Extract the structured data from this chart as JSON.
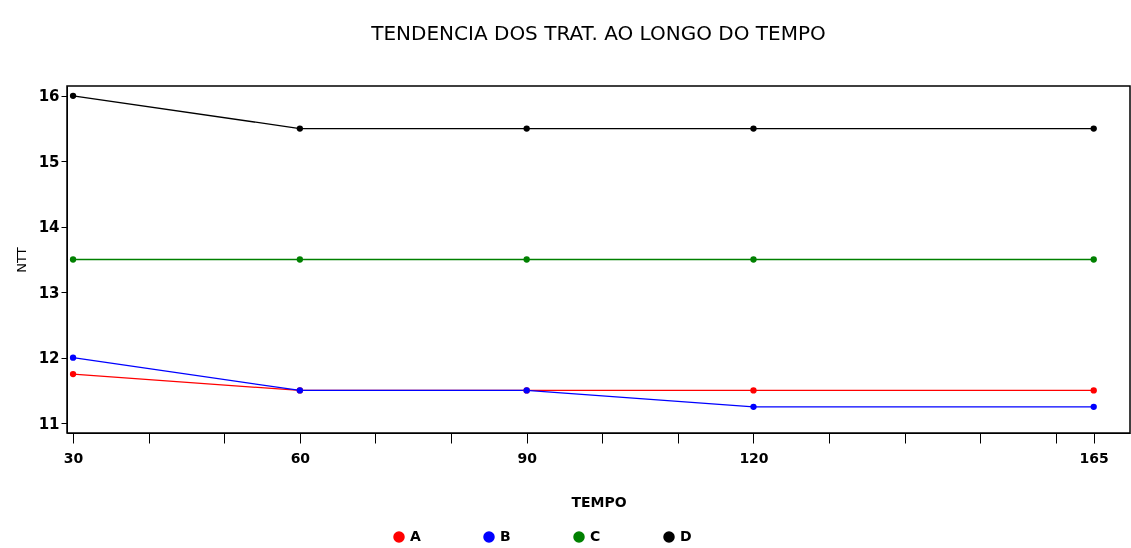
{
  "chart_data": {
    "type": "line",
    "title": "TENDENCIA DOS TRAT. AO LONGO DO TEMPO",
    "xlabel": "TEMPO",
    "ylabel": "NTT",
    "x": [
      30,
      60,
      90,
      120,
      165
    ],
    "series": [
      {
        "name": "A",
        "color": "#ff0000",
        "values": [
          11.75,
          11.5,
          11.5,
          11.5,
          11.5
        ]
      },
      {
        "name": "B",
        "color": "#0000ff",
        "values": [
          12,
          11.5,
          11.5,
          11.25,
          11.25
        ]
      },
      {
        "name": "C",
        "color": "#008000",
        "values": [
          13.5,
          13.5,
          13.5,
          13.5,
          13.5
        ]
      },
      {
        "name": "D",
        "color": "#000000",
        "values": [
          16,
          15.5,
          15.5,
          15.5,
          15.5
        ]
      }
    ],
    "xlim": [
      29.2,
      169.8
    ],
    "ylim": [
      10.85,
      16.15
    ],
    "xticks": [
      30,
      {
        "value": 40,
        "label": null
      },
      {
        "value": 50,
        "label": null
      },
      60,
      {
        "value": 70,
        "label": null
      },
      {
        "value": 80,
        "label": null
      },
      90,
      {
        "value": 100,
        "label": null
      },
      {
        "value": 110,
        "label": null
      },
      120,
      {
        "value": 130,
        "label": null
      },
      {
        "value": 140,
        "label": null
      },
      {
        "value": 150,
        "label": null
      },
      {
        "value": 160,
        "label": null
      },
      165
    ],
    "yticks": [
      11,
      12,
      13,
      14,
      15,
      16
    ],
    "grid": false,
    "legend": "bottom",
    "marker": "circle",
    "line_style": "solid"
  }
}
